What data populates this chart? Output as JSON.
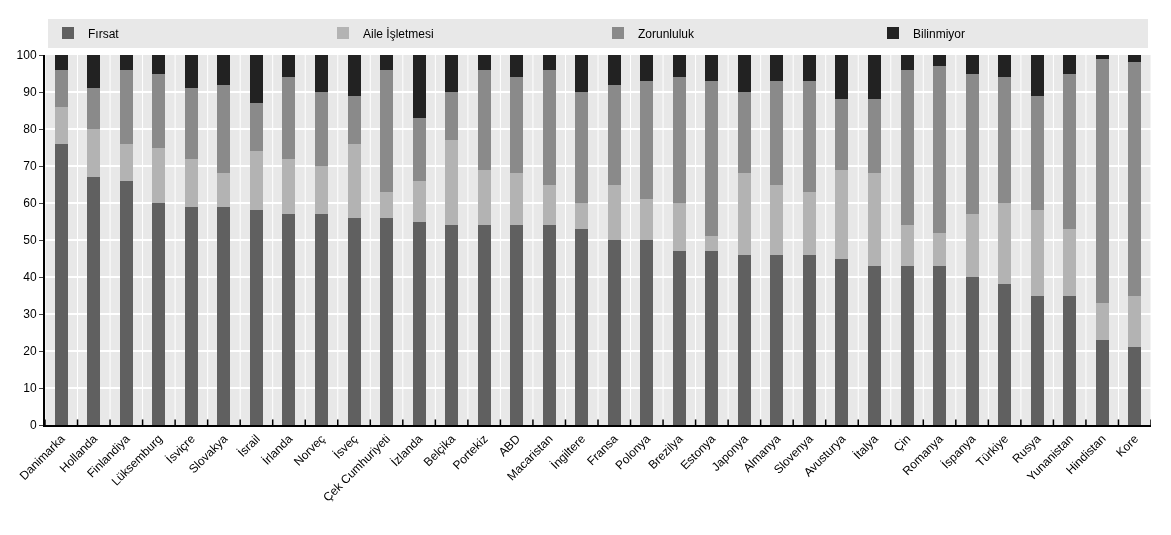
{
  "chart_data": {
    "type": "bar",
    "stacked": true,
    "categories": [
      "Danimarka",
      "Hollanda",
      "Finlandiya",
      "Lüksemburg",
      "İsviçre",
      "Slovakya",
      "İsrail",
      "İrlanda",
      "Norveç",
      "İsveç",
      "Çek Cumhuriyeti",
      "İzlanda",
      "Belçika",
      "Portekiz",
      "ABD",
      "Macaristan",
      "İngiltere",
      "Fransa",
      "Polonya",
      "Brezilya",
      "Estonya",
      "Japonya",
      "Almanya",
      "Slovenya",
      "Avusturya",
      "İtalya",
      "Çin",
      "Romanya",
      "İspanya",
      "Türkiye",
      "Rusya",
      "Yunanistan",
      "Hindistan",
      "Kore"
    ],
    "series": [
      {
        "name": "Fırsat",
        "color": "#606060",
        "values": [
          76,
          67,
          66,
          60,
          59,
          59,
          58,
          57,
          57,
          56,
          56,
          55,
          54,
          54,
          54,
          54,
          53,
          50,
          50,
          47,
          47,
          46,
          46,
          46,
          45,
          43,
          43,
          43,
          40,
          38,
          35,
          35,
          23,
          21
        ]
      },
      {
        "name": "Aile İşletmesi",
        "color": "#b3b3b3",
        "values": [
          10,
          13,
          10,
          15,
          13,
          9,
          16,
          15,
          13,
          20,
          7,
          11,
          23,
          15,
          14,
          11,
          7,
          15,
          11,
          13,
          4,
          22,
          19,
          17,
          24,
          25,
          11,
          9,
          17,
          22,
          23,
          18,
          10,
          14
        ]
      },
      {
        "name": "Zorunluluk",
        "color": "#8a8a8a",
        "values": [
          10,
          11,
          20,
          20,
          19,
          24,
          13,
          22,
          20,
          13,
          33,
          17,
          13,
          27,
          26,
          31,
          30,
          27,
          32,
          34,
          42,
          22,
          28,
          30,
          19,
          20,
          42,
          45,
          38,
          34,
          31,
          42,
          66,
          63
        ]
      },
      {
        "name": "Bilinmiyor",
        "color": "#222222",
        "values": [
          4,
          9,
          4,
          5,
          9,
          8,
          13,
          6,
          10,
          11,
          4,
          17,
          10,
          4,
          6,
          4,
          10,
          8,
          7,
          6,
          7,
          10,
          7,
          7,
          12,
          12,
          4,
          3,
          5,
          6,
          11,
          5,
          1,
          2
        ]
      }
    ],
    "ylim": [
      0,
      100
    ],
    "yticks": [
      0,
      10,
      20,
      30,
      40,
      50,
      60,
      70,
      80,
      90,
      100
    ],
    "grid": true,
    "legend": "top"
  }
}
